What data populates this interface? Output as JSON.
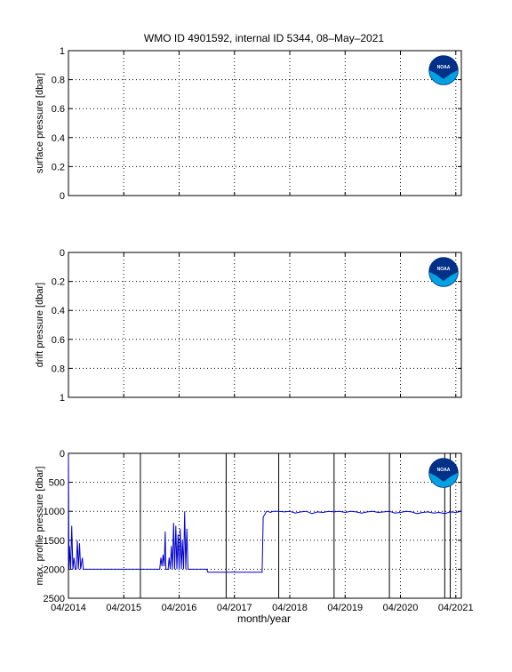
{
  "title": "WMO ID 4901592, internal ID 5344, 08–May–2021",
  "xlabel": "month/year",
  "x_tick_labels": [
    "04/2014",
    "04/2015",
    "04/2016",
    "04/2017",
    "04/2018",
    "04/2019",
    "04/2020",
    "04/2021"
  ],
  "logo_text": "NOAA",
  "colors": {
    "line": "#0000cc",
    "axis": "#000000",
    "grid": "#000000"
  },
  "chart_data": [
    {
      "type": "line",
      "ylabel": "surface pressure [dbar]",
      "ylim": [
        0,
        1
      ],
      "y_reversed": false,
      "y_ticks": [
        0,
        0.2,
        0.4,
        0.6,
        0.8,
        1
      ],
      "x_ticks": [
        "04/2014",
        "04/2015",
        "04/2016",
        "04/2017",
        "04/2018",
        "04/2019",
        "04/2020",
        "04/2021"
      ],
      "grid": "dotted",
      "series": []
    },
    {
      "type": "line",
      "ylabel": "drift pressure [dbar]",
      "ylim": [
        0,
        1
      ],
      "y_reversed": true,
      "y_ticks": [
        0,
        0.2,
        0.4,
        0.6,
        0.8,
        1
      ],
      "x_ticks": [
        "04/2014",
        "04/2015",
        "04/2016",
        "04/2017",
        "04/2018",
        "04/2019",
        "04/2020",
        "04/2021"
      ],
      "grid": "dotted",
      "series": []
    },
    {
      "type": "line",
      "ylabel": "max. profile pressure [dbar]",
      "ylim": [
        0,
        2500
      ],
      "y_reversed": true,
      "y_ticks": [
        0,
        500,
        1000,
        1500,
        2000,
        2500
      ],
      "x_ticks": [
        "04/2014",
        "04/2015",
        "04/2016",
        "04/2017",
        "04/2018",
        "04/2019",
        "04/2020",
        "04/2021"
      ],
      "grid": "dotted",
      "vertical_lines_at_year": [
        2015.3,
        2016.85,
        2017.8,
        2018.8,
        2019.8,
        2020.8,
        2020.9
      ],
      "series": [
        {
          "x": [
            2014.0,
            2014.01,
            2014.02,
            2014.04,
            2014.06,
            2014.08,
            2014.1,
            2014.12,
            2014.14,
            2014.16,
            2014.18,
            2014.2,
            2014.22,
            2014.25,
            2014.27,
            2014.29,
            2014.31,
            2014.33,
            2014.36,
            2014.38,
            2014.4,
            2014.42,
            2014.5,
            2014.6,
            2014.7,
            2014.8,
            2014.9,
            2015.0,
            2015.1,
            2015.2,
            2015.3,
            2015.4,
            2015.5,
            2015.65,
            2015.67,
            2015.69,
            2015.71,
            2015.73,
            2015.75,
            2015.76,
            2015.78,
            2015.8,
            2015.82,
            2015.84,
            2015.86,
            2015.88,
            2015.9,
            2015.92,
            2015.94,
            2015.96,
            2015.98,
            2016.0,
            2016.02,
            2016.04,
            2016.06,
            2016.08,
            2016.1,
            2016.12,
            2016.14,
            2016.16,
            2016.18,
            2016.2,
            2016.22,
            2016.24,
            2016.26,
            2016.28,
            2016.3,
            2016.32,
            2016.34,
            2016.36,
            2016.38,
            2016.4,
            2016.42,
            2016.44,
            2016.46,
            2016.48,
            2016.5,
            2016.52,
            2016.54,
            2016.6,
            2016.7,
            2016.8,
            2016.9,
            2017.0,
            2017.1,
            2017.2,
            2017.3,
            2017.4,
            2017.5,
            2017.52,
            2017.55,
            2017.58,
            2017.6,
            2017.65,
            2017.7,
            2017.8,
            2017.9,
            2018.0,
            2018.1,
            2018.2,
            2018.3,
            2018.4,
            2018.5,
            2018.6,
            2018.7,
            2018.8,
            2018.9,
            2019.0,
            2019.1,
            2019.2,
            2019.3,
            2019.4,
            2019.5,
            2019.6,
            2019.7,
            2019.8,
            2019.9,
            2020.0,
            2020.1,
            2020.2,
            2020.3,
            2020.4,
            2020.5,
            2020.6,
            2020.7,
            2020.8,
            2020.9,
            2021.0,
            2021.1
          ],
          "y": [
            50,
            2000,
            1600,
            2000,
            1250,
            2000,
            1800,
            2000,
            2000,
            1500,
            2000,
            1550,
            2000,
            1800,
            2000,
            2000,
            2000,
            2000,
            2000,
            2000,
            2000,
            2000,
            2000,
            2000,
            2000,
            2000,
            2000,
            2000,
            2000,
            2000,
            2000,
            2000,
            2000,
            2000,
            1800,
            1950,
            1750,
            1950,
            1350,
            2000,
            2000,
            2000,
            1800,
            2000,
            1600,
            2000,
            1200,
            2000,
            1250,
            2000,
            1400,
            2000,
            1300,
            2000,
            1500,
            2000,
            1000,
            2000,
            1300,
            2000,
            2000,
            2000,
            2000,
            2000,
            2000,
            2000,
            2000,
            2000,
            2000,
            2000,
            2000,
            2000,
            2000,
            2000,
            2000,
            2000,
            2000,
            2050,
            2050,
            2050,
            2050,
            2050,
            2050,
            2050,
            2050,
            2050,
            2050,
            2050,
            2050,
            1100,
            1050,
            1000,
            1000,
            1020,
            1000,
            1000,
            1010,
            1000,
            1030,
            1010,
            1000,
            1040,
            1010,
            1020,
            1000,
            1010,
            1000,
            1020,
            1000,
            1010,
            1030,
            1010,
            1000,
            1020,
            1010,
            1000,
            1030,
            1020,
            1000,
            1010,
            1040,
            1020,
            1010,
            1030,
            1020,
            1040,
            1010,
            1020,
            1000
          ]
        }
      ]
    }
  ]
}
